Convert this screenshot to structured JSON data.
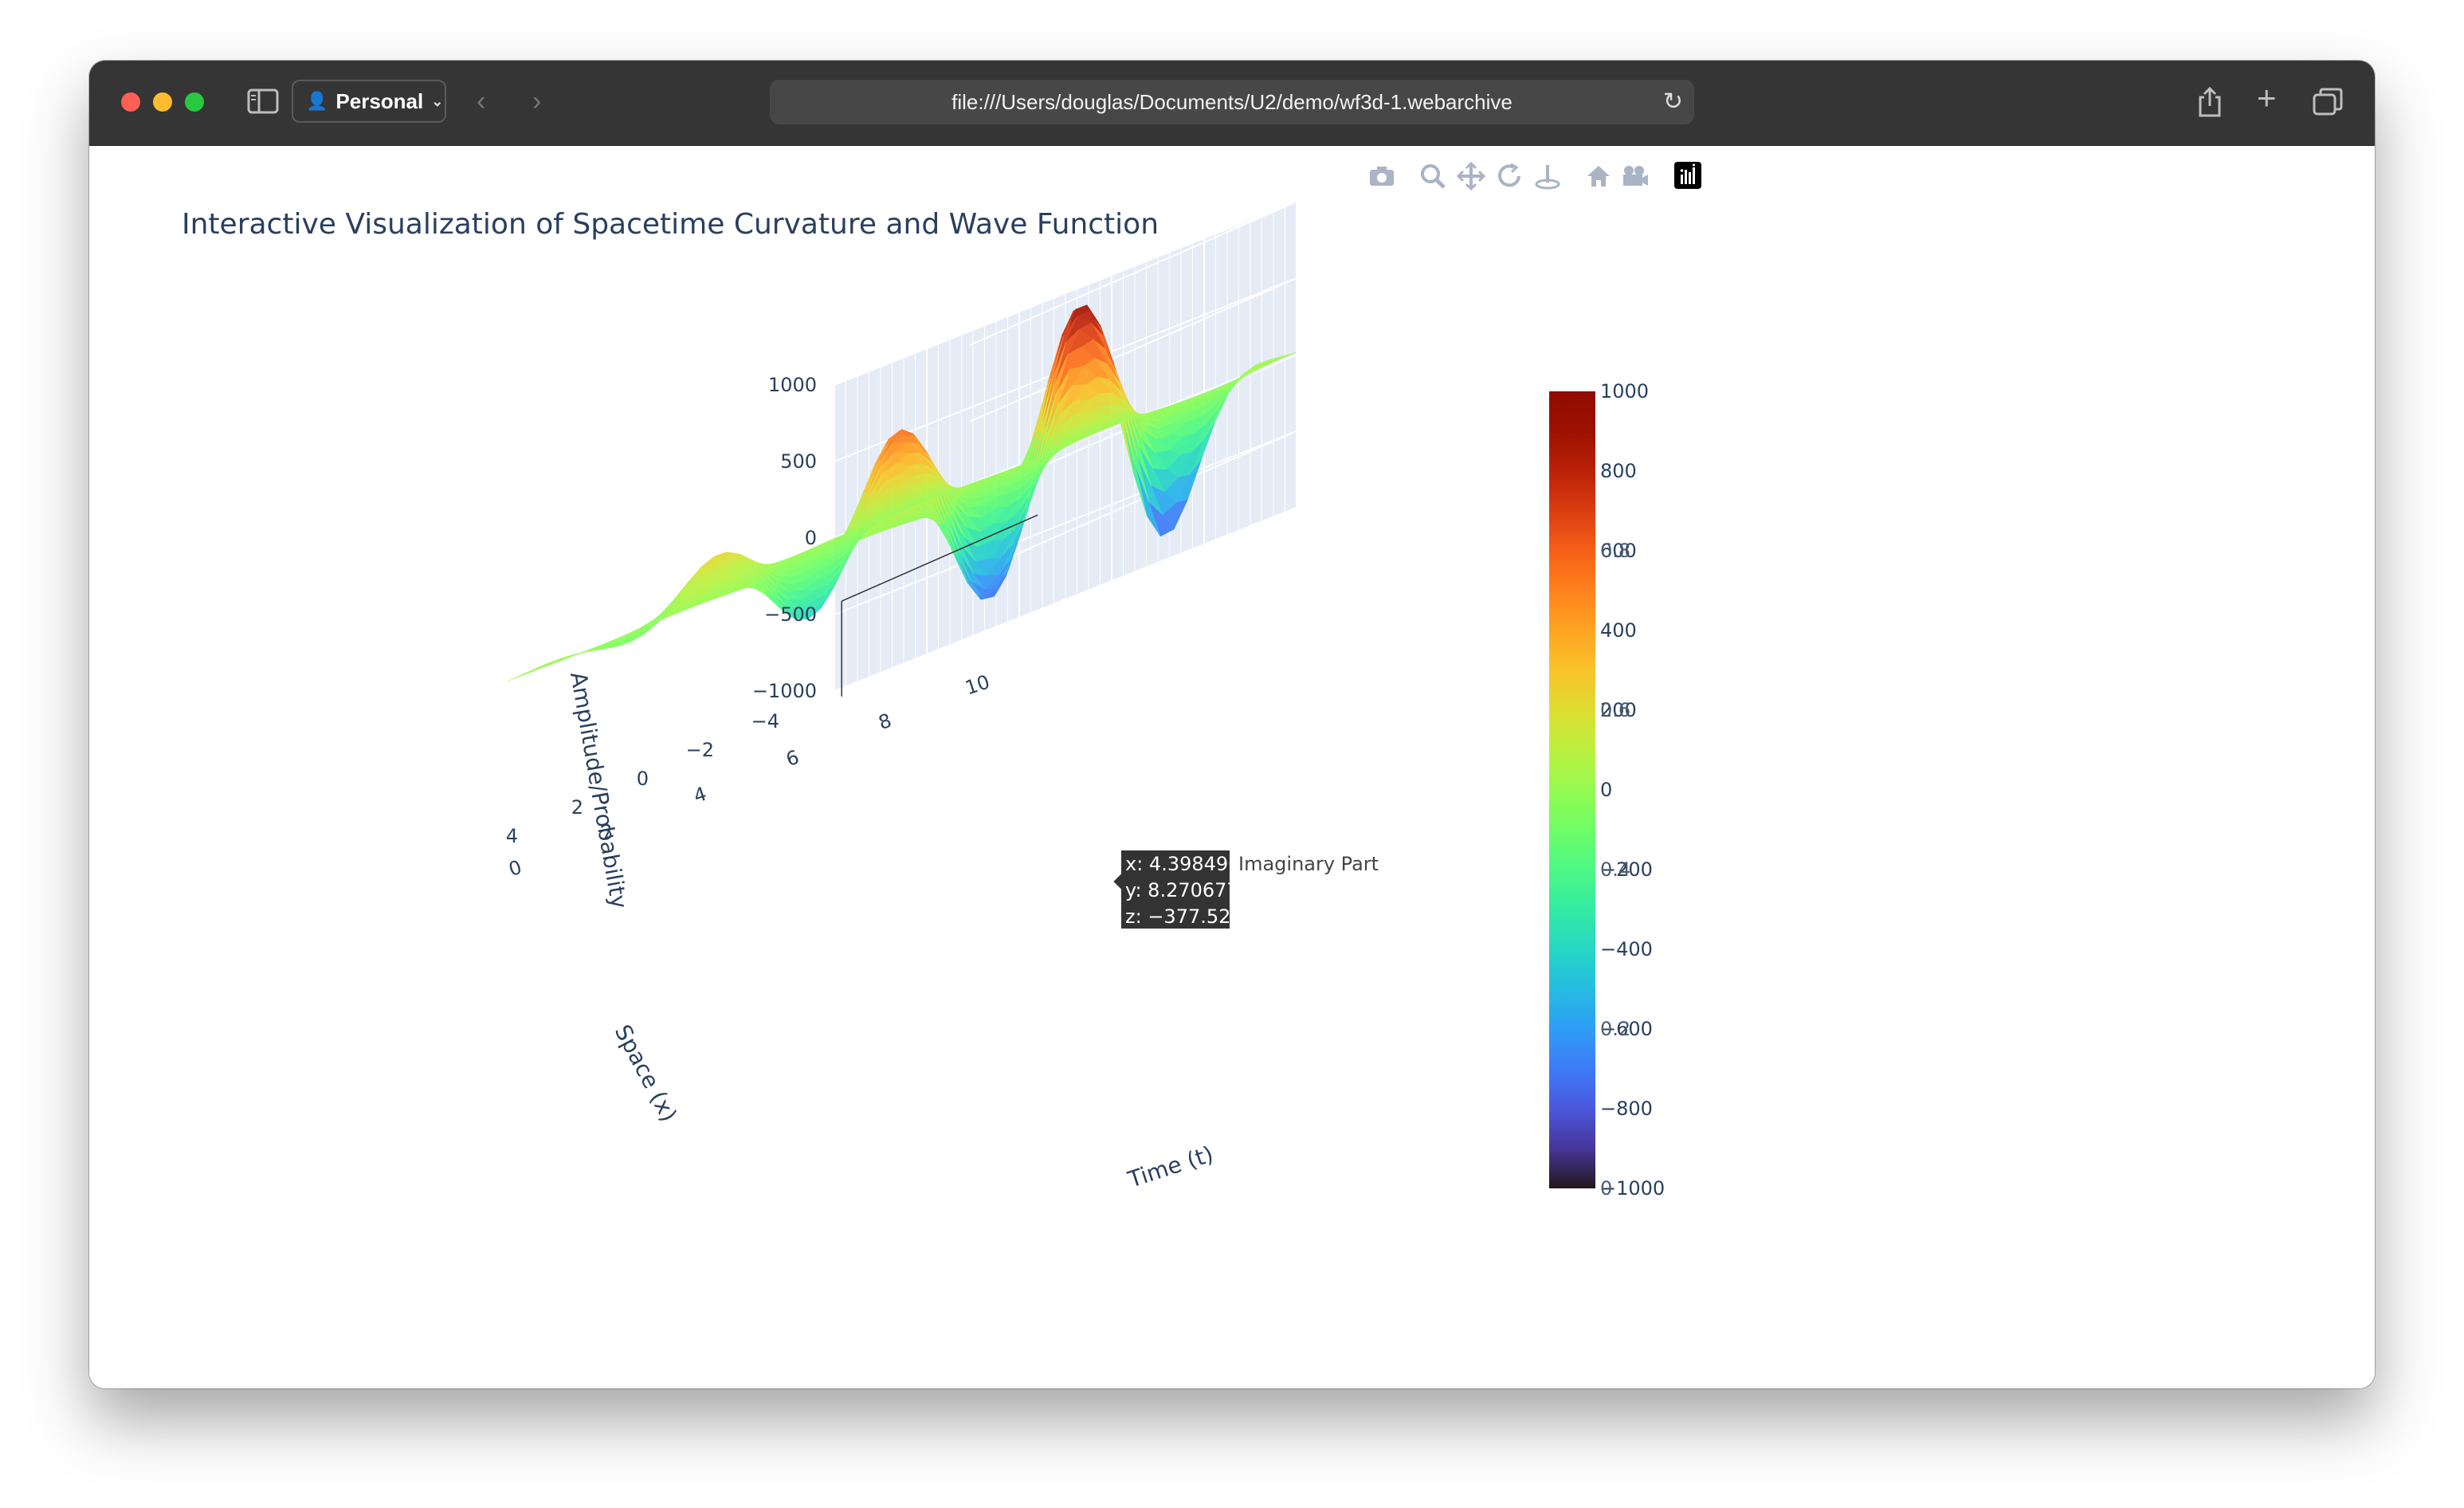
{
  "browser": {
    "profile_label": "Personal",
    "url": "file:///Users/douglas/Documents/U2/demo/wf3d-1.webarchive"
  },
  "plot": {
    "title": "Interactive Visualization of Spacetime Curvature and Wave Function",
    "modebar_icons": [
      "camera-icon",
      "zoom-icon",
      "pan-icon",
      "orbit-rotation-icon",
      "turntable-rotation-icon",
      "home-icon",
      "camera-views-icon",
      "plotly-logo-icon"
    ]
  },
  "chart_data": {
    "type": "surface",
    "xaxis": {
      "title": "Time (t)",
      "ticks": [
        "0",
        "2",
        "4",
        "6",
        "8",
        "10"
      ],
      "range": [
        0,
        10
      ]
    },
    "yaxis": {
      "title": "Space (x)",
      "ticks": [
        "−4",
        "−2",
        "0",
        "2",
        "4"
      ],
      "range": [
        -5,
        5
      ]
    },
    "zaxis": {
      "title": "Amplitude/Probability",
      "ticks": [
        "1000",
        "500",
        "0",
        "−500",
        "−1000"
      ],
      "range": [
        -1000,
        1000
      ]
    },
    "colorbar": {
      "ticks": [
        "1000",
        "800",
        "600",
        "400",
        "200",
        "0",
        "−200",
        "−400",
        "−600",
        "−800",
        "−1000"
      ],
      "overlap_ticks": [
        "0.8",
        "0.6",
        "0.4",
        "0.2",
        "0"
      ],
      "range": [
        -1000,
        1000
      ],
      "colorscale": "turbo"
    },
    "hover": {
      "x": "x: 4.398496",
      "y": "y: 8.270677",
      "z": "z: −377.528",
      "trace": "Imaginary Part"
    }
  }
}
